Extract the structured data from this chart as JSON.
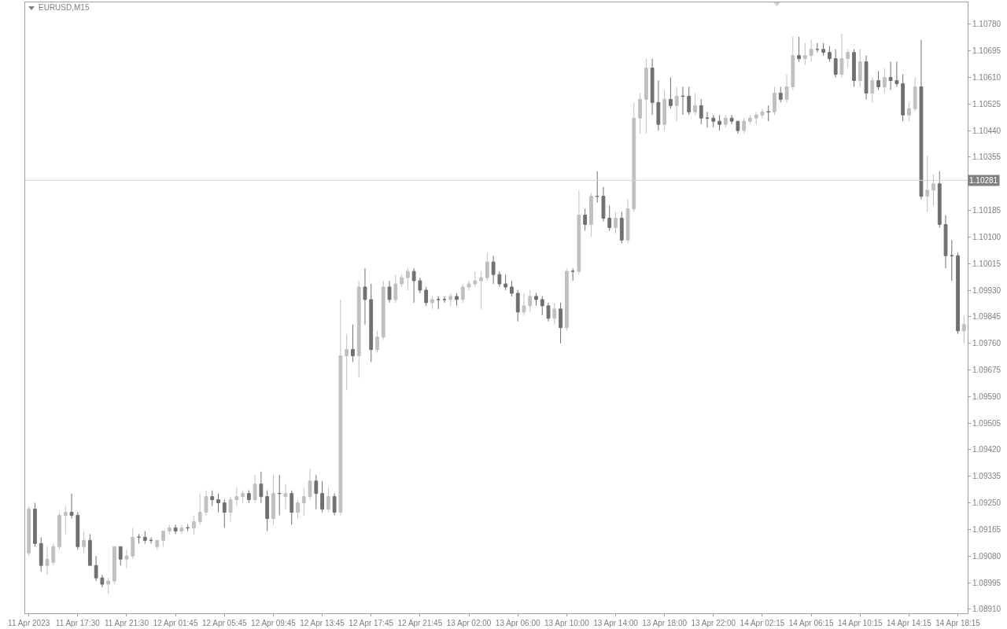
{
  "chart_data": {
    "type": "candlestick",
    "title": "EURUSD,M15",
    "categories": [
      "11 Apr 2023",
      null,
      null,
      null,
      null,
      null,
      null,
      null,
      "11 Apr 17:30",
      null,
      null,
      null,
      null,
      null,
      null,
      null,
      "11 Apr 21:30",
      null,
      null,
      null,
      null,
      null,
      null,
      null,
      "12 Apr 01:45",
      null,
      null,
      null,
      null,
      null,
      null,
      null,
      "12 Apr 05:45",
      null,
      null,
      null,
      null,
      null,
      null,
      null,
      "12 Apr 09:45",
      null,
      null,
      null,
      null,
      null,
      null,
      null,
      "12 Apr 13:45",
      null,
      null,
      null,
      null,
      null,
      null,
      null,
      "12 Apr 17:45",
      null,
      null,
      null,
      null,
      null,
      null,
      null,
      "12 Apr 21:45",
      null,
      null,
      null,
      null,
      null,
      null,
      null,
      "13 Apr 02:00",
      null,
      null,
      null,
      null,
      null,
      null,
      null,
      "13 Apr 06:00",
      null,
      null,
      null,
      null,
      null,
      null,
      null,
      "13 Apr 10:00",
      null,
      null,
      null,
      null,
      null,
      null,
      null,
      "13 Apr 14:00",
      null,
      null,
      null,
      null,
      null,
      null,
      null,
      "13 Apr 18:00",
      null,
      null,
      null,
      null,
      null,
      null,
      null,
      "13 Apr 22:00",
      null,
      null,
      null,
      null,
      null,
      null,
      null,
      "14 Apr 02:15",
      null,
      null,
      null,
      null,
      null,
      null,
      null,
      "14 Apr 06:15",
      null,
      null,
      null,
      null,
      null,
      null,
      null,
      "14 Apr 10:15",
      null,
      null,
      null,
      null,
      null,
      null,
      null,
      "14 Apr 14:15",
      null,
      null,
      null,
      null,
      null,
      null,
      null,
      "14 Apr 18:15",
      null
    ],
    "ohlc": [
      [
        1.0909,
        1.0924,
        1.0908,
        1.0923
      ],
      [
        1.0923,
        1.0925,
        1.0911,
        1.0912
      ],
      [
        1.0912,
        1.0914,
        1.0903,
        1.0905
      ],
      [
        1.0905,
        1.0911,
        1.0902,
        1.0907
      ],
      [
        1.0906,
        1.0912,
        1.0905,
        1.0911
      ],
      [
        1.0911,
        1.0922,
        1.091,
        1.0921
      ],
      [
        1.0921,
        1.0924,
        1.0915,
        1.0922
      ],
      [
        1.0922,
        1.0928,
        1.092,
        1.0921
      ],
      [
        1.0921,
        1.0922,
        1.091,
        1.0911
      ],
      [
        1.0911,
        1.0916,
        1.0909,
        1.0913
      ],
      [
        1.0913,
        1.0915,
        1.0905,
        1.0905
      ],
      [
        1.0905,
        1.0908,
        1.09,
        1.0901
      ],
      [
        1.0901,
        1.0902,
        1.0898,
        1.0899
      ],
      [
        1.0899,
        1.0901,
        1.0896,
        1.09
      ],
      [
        1.09,
        1.0911,
        1.0899,
        1.0911
      ],
      [
        1.0911,
        1.0911,
        1.0905,
        1.0907
      ],
      [
        1.0907,
        1.091,
        1.0904,
        1.0908
      ],
      [
        1.0908,
        1.0917,
        1.0907,
        1.0914
      ],
      [
        1.0914,
        1.0915,
        1.0912,
        1.0914
      ],
      [
        1.0914,
        1.0916,
        1.0912,
        1.0913
      ],
      [
        1.0913,
        1.0914,
        1.0912,
        1.0913
      ],
      [
        1.0911,
        1.0913,
        1.091,
        1.0913
      ],
      [
        1.0913,
        1.0916,
        1.0911,
        1.0916
      ],
      [
        1.0916,
        1.0918,
        1.0915,
        1.0917
      ],
      [
        1.0917,
        1.0918,
        1.0915,
        1.0916
      ],
      [
        1.0916,
        1.0918,
        1.0915,
        1.0917
      ],
      [
        1.0917,
        1.0918,
        1.0916,
        1.0917
      ],
      [
        1.0917,
        1.0921,
        1.0915,
        1.0919
      ],
      [
        1.0919,
        1.0928,
        1.0918,
        1.0922
      ],
      [
        1.0922,
        1.0929,
        1.0921,
        1.0927
      ],
      [
        1.0927,
        1.0929,
        1.0924,
        1.0926
      ],
      [
        1.0926,
        1.0928,
        1.0922,
        1.0925
      ],
      [
        1.0925,
        1.0926,
        1.0917,
        1.0922
      ],
      [
        1.0922,
        1.0927,
        1.0919,
        1.0926
      ],
      [
        1.0926,
        1.093,
        1.0924,
        1.0927
      ],
      [
        1.0927,
        1.0929,
        1.0925,
        1.0928
      ],
      [
        1.0928,
        1.0929,
        1.0925,
        1.0926
      ],
      [
        1.0926,
        1.0934,
        1.0925,
        1.0931
      ],
      [
        1.0931,
        1.0935,
        1.0925,
        1.0927
      ],
      [
        1.0927,
        1.0929,
        1.0916,
        1.092
      ],
      [
        1.092,
        1.0934,
        1.0918,
        1.0928
      ],
      [
        1.0928,
        1.0934,
        1.0921,
        1.0928
      ],
      [
        1.0927,
        1.0931,
        1.0923,
        1.0928
      ],
      [
        1.0928,
        1.0929,
        1.0918,
        1.0922
      ],
      [
        1.0922,
        1.0926,
        1.092,
        1.0925
      ],
      [
        1.0925,
        1.093,
        1.0921,
        1.0927
      ],
      [
        1.0927,
        1.0936,
        1.0926,
        1.0932
      ],
      [
        1.0932,
        1.0934,
        1.0923,
        1.0928
      ],
      [
        1.0928,
        1.0932,
        1.0922,
        1.0923
      ],
      [
        1.0923,
        1.093,
        1.0922,
        1.0927
      ],
      [
        1.0927,
        1.0928,
        1.0921,
        1.0922
      ],
      [
        1.0922,
        1.099,
        1.0921,
        1.0972
      ],
      [
        1.0972,
        1.0979,
        1.0961,
        1.0974
      ],
      [
        1.0974,
        1.0982,
        1.097,
        1.0972
      ],
      [
        1.0972,
        1.0996,
        1.0965,
        1.0994
      ],
      [
        1.0994,
        1.1,
        1.0982,
        1.099
      ],
      [
        1.099,
        1.0995,
        1.097,
        1.0974
      ],
      [
        1.0974,
        1.098,
        1.0973,
        1.0978
      ],
      [
        1.0978,
        1.0996,
        1.0977,
        1.0994
      ],
      [
        1.0994,
        1.0996,
        1.0989,
        1.099
      ],
      [
        1.099,
        1.0998,
        1.0989,
        1.0995
      ],
      [
        1.0995,
        1.0998,
        1.0994,
        1.0997
      ],
      [
        1.0997,
        1.1,
        1.0993,
        1.0999
      ],
      [
        1.0999,
        1.1,
        1.0989,
        1.0996
      ],
      [
        1.0996,
        1.0997,
        1.0992,
        1.0993
      ],
      [
        1.0993,
        1.0994,
        1.0988,
        1.0989
      ],
      [
        1.0989,
        1.0991,
        1.0987,
        1.099
      ],
      [
        1.099,
        1.0991,
        1.0987,
        1.099
      ],
      [
        1.099,
        1.0991,
        1.0989,
        1.099
      ],
      [
        1.099,
        1.0992,
        1.0988,
        1.0991
      ],
      [
        1.0991,
        1.0992,
        1.0988,
        1.099
      ],
      [
        1.099,
        1.0995,
        1.0989,
        1.0994
      ],
      [
        1.0994,
        1.0996,
        1.0993,
        1.0995
      ],
      [
        1.0995,
        1.0999,
        1.0994,
        1.0996
      ],
      [
        1.0996,
        1.0999,
        1.0987,
        1.0997
      ],
      [
        1.0997,
        1.1005,
        1.0996,
        1.1002
      ],
      [
        1.1002,
        1.1004,
        1.0995,
        1.0998
      ],
      [
        1.0998,
        1.0999,
        1.0994,
        1.0995
      ],
      [
        1.0995,
        1.0998,
        1.0993,
        1.0994
      ],
      [
        1.0994,
        1.0996,
        1.0991,
        1.0992
      ],
      [
        1.0992,
        1.0993,
        1.0983,
        1.0986
      ],
      [
        1.0986,
        1.0992,
        1.0985,
        1.0988
      ],
      [
        1.0988,
        1.0993,
        1.0986,
        1.0991
      ],
      [
        1.0991,
        1.0992,
        1.0988,
        1.099
      ],
      [
        1.099,
        1.0991,
        1.0985,
        1.0988
      ],
      [
        1.0988,
        1.0989,
        1.0983,
        1.0984
      ],
      [
        1.0984,
        1.0989,
        1.0982,
        1.0987
      ],
      [
        1.0987,
        1.0989,
        1.0976,
        1.0981
      ],
      [
        1.0981,
        1.1,
        1.098,
        1.0999
      ],
      [
        1.0999,
        1.1,
        1.0996,
        1.0999
      ],
      [
        1.0999,
        1.1025,
        1.0998,
        1.1017
      ],
      [
        1.1017,
        1.1019,
        1.1012,
        1.1014
      ],
      [
        1.1014,
        1.1024,
        1.101,
        1.1023
      ],
      [
        1.1023,
        1.1031,
        1.1021,
        1.1023
      ],
      [
        1.1023,
        1.1026,
        1.1015,
        1.1016
      ],
      [
        1.1016,
        1.102,
        1.1012,
        1.1013
      ],
      [
        1.1013,
        1.1018,
        1.1011,
        1.1016
      ],
      [
        1.1016,
        1.1018,
        1.1008,
        1.1009
      ],
      [
        1.1009,
        1.1022,
        1.1008,
        1.1019
      ],
      [
        1.1019,
        1.1053,
        1.1018,
        1.1048
      ],
      [
        1.1048,
        1.1056,
        1.1043,
        1.1054
      ],
      [
        1.1054,
        1.1067,
        1.1043,
        1.1064
      ],
      [
        1.1064,
        1.1067,
        1.1049,
        1.1053
      ],
      [
        1.1053,
        1.106,
        1.1044,
        1.1046
      ],
      [
        1.1046,
        1.1057,
        1.1044,
        1.1054
      ],
      [
        1.1054,
        1.1061,
        1.1051,
        1.1052
      ],
      [
        1.1052,
        1.1058,
        1.1047,
        1.1055
      ],
      [
        1.1055,
        1.1058,
        1.1049,
        1.1055
      ],
      [
        1.1055,
        1.1058,
        1.1049,
        1.105
      ],
      [
        1.105,
        1.1056,
        1.1049,
        1.1052
      ],
      [
        1.1052,
        1.1054,
        1.1046,
        1.1048
      ],
      [
        1.1048,
        1.105,
        1.1045,
        1.1048
      ],
      [
        1.1048,
        1.1049,
        1.1045,
        1.1047
      ],
      [
        1.1047,
        1.1049,
        1.1044,
        1.1046
      ],
      [
        1.1046,
        1.1049,
        1.1045,
        1.1048
      ],
      [
        1.1048,
        1.1049,
        1.1046,
        1.1047
      ],
      [
        1.1047,
        1.1047,
        1.1043,
        1.1044
      ],
      [
        1.1044,
        1.1048,
        1.1043,
        1.1047
      ],
      [
        1.1047,
        1.1049,
        1.1046,
        1.1048
      ],
      [
        1.1048,
        1.105,
        1.1046,
        1.1049
      ],
      [
        1.1049,
        1.1051,
        1.1048,
        1.105
      ],
      [
        1.105,
        1.1052,
        1.1047,
        1.105
      ],
      [
        1.105,
        1.1058,
        1.1049,
        1.1056
      ],
      [
        1.1056,
        1.1058,
        1.1053,
        1.1054
      ],
      [
        1.1054,
        1.1062,
        1.1053,
        1.1058
      ],
      [
        1.1058,
        1.1074,
        1.1057,
        1.1068
      ],
      [
        1.1068,
        1.1074,
        1.1066,
        1.1067
      ],
      [
        1.1067,
        1.1072,
        1.1065,
        1.1068
      ],
      [
        1.1068,
        1.1073,
        1.1066,
        1.107
      ],
      [
        1.107,
        1.1072,
        1.1069,
        1.107
      ],
      [
        1.107,
        1.1072,
        1.1068,
        1.1069
      ],
      [
        1.1069,
        1.1071,
        1.1066,
        1.1067
      ],
      [
        1.1067,
        1.107,
        1.1061,
        1.1062
      ],
      [
        1.1062,
        1.1075,
        1.1061,
        1.1067
      ],
      [
        1.1067,
        1.107,
        1.1064,
        1.1069
      ],
      [
        1.1069,
        1.107,
        1.1058,
        1.106
      ],
      [
        1.106,
        1.107,
        1.1058,
        1.1066
      ],
      [
        1.1066,
        1.1068,
        1.1054,
        1.1056
      ],
      [
        1.1056,
        1.1061,
        1.1053,
        1.106
      ],
      [
        1.106,
        1.1063,
        1.1057,
        1.1058
      ],
      [
        1.1058,
        1.1064,
        1.1056,
        1.1061
      ],
      [
        1.1061,
        1.1066,
        1.1057,
        1.106
      ],
      [
        1.106,
        1.1066,
        1.1058,
        1.1059
      ],
      [
        1.1059,
        1.1062,
        1.1047,
        1.1049
      ],
      [
        1.1049,
        1.1053,
        1.1047,
        1.1051
      ],
      [
        1.1051,
        1.1061,
        1.105,
        1.1058
      ],
      [
        1.1058,
        1.1073,
        1.1022,
        1.1023
      ],
      [
        1.1023,
        1.1036,
        1.1018,
        1.1025
      ],
      [
        1.1025,
        1.103,
        1.102,
        1.1027
      ],
      [
        1.1027,
        1.1031,
        1.1013,
        1.1014
      ],
      [
        1.1014,
        1.1017,
        1.1,
        1.1004
      ],
      [
        1.1004,
        1.1009,
        1.0996,
        1.1004
      ],
      [
        1.1004,
        1.1005,
        1.0979,
        1.098
      ],
      [
        1.098,
        1.0985,
        1.0976,
        1.0982
      ]
    ],
    "colors": [
      "#c0c0c0",
      "#707070",
      "#707070",
      "#c0c0c0",
      "#c0c0c0",
      "#c0c0c0",
      "#c0c0c0",
      "#707070",
      "#707070",
      "#c0c0c0",
      "#707070",
      "#707070",
      "#707070",
      "#c0c0c0",
      "#c0c0c0",
      "#707070",
      "#c0c0c0",
      "#c0c0c0",
      "#707070",
      "#707070",
      "#707070",
      "#c0c0c0",
      "#c0c0c0",
      "#c0c0c0",
      "#707070",
      "#c0c0c0",
      "#707070",
      "#c0c0c0",
      "#c0c0c0",
      "#c0c0c0",
      "#707070",
      "#707070",
      "#707070",
      "#c0c0c0",
      "#c0c0c0",
      "#c0c0c0",
      "#707070",
      "#c0c0c0",
      "#707070",
      "#707070",
      "#c0c0c0",
      "#707070",
      "#c0c0c0",
      "#707070",
      "#c0c0c0",
      "#c0c0c0",
      "#c0c0c0",
      "#707070",
      "#707070",
      "#c0c0c0",
      "#707070",
      "#c0c0c0",
      "#c0c0c0",
      "#707070",
      "#c0c0c0",
      "#707070",
      "#707070",
      "#c0c0c0",
      "#c0c0c0",
      "#707070",
      "#c0c0c0",
      "#c0c0c0",
      "#c0c0c0",
      "#707070",
      "#707070",
      "#707070",
      "#c0c0c0",
      "#707070",
      "#707070",
      "#c0c0c0",
      "#707070",
      "#c0c0c0",
      "#c0c0c0",
      "#c0c0c0",
      "#c0c0c0",
      "#c0c0c0",
      "#707070",
      "#707070",
      "#707070",
      "#707070",
      "#707070",
      "#c0c0c0",
      "#c0c0c0",
      "#707070",
      "#707070",
      "#707070",
      "#c0c0c0",
      "#707070",
      "#c0c0c0",
      "#707070",
      "#c0c0c0",
      "#707070",
      "#c0c0c0",
      "#707070",
      "#707070",
      "#707070",
      "#c0c0c0",
      "#707070",
      "#c0c0c0",
      "#c0c0c0",
      "#c0c0c0",
      "#c0c0c0",
      "#707070",
      "#707070",
      "#c0c0c0",
      "#707070",
      "#c0c0c0",
      "#707070",
      "#707070",
      "#c0c0c0",
      "#707070",
      "#707070",
      "#707070",
      "#707070",
      "#c0c0c0",
      "#707070",
      "#707070",
      "#c0c0c0",
      "#c0c0c0",
      "#c0c0c0",
      "#c0c0c0",
      "#707070",
      "#c0c0c0",
      "#707070",
      "#c0c0c0",
      "#c0c0c0",
      "#707070",
      "#c0c0c0",
      "#c0c0c0",
      "#707070",
      "#707070",
      "#707070",
      "#707070",
      "#c0c0c0",
      "#c0c0c0",
      "#707070",
      "#c0c0c0",
      "#707070",
      "#c0c0c0",
      "#707070",
      "#c0c0c0",
      "#707070",
      "#707070",
      "#707070",
      "#c0c0c0",
      "#c0c0c0",
      "#707070",
      "#c0c0c0",
      "#c0c0c0",
      "#707070",
      "#707070",
      "#707070",
      "#707070",
      "#c0c0c0"
    ],
    "ylim": [
      1.08897,
      1.1085
    ],
    "yticks": [
      {
        "value": 1.0891,
        "label": "1.08910"
      },
      {
        "value": 1.08995,
        "label": "1.08995"
      },
      {
        "value": 1.0908,
        "label": "1.09080"
      },
      {
        "value": 1.09165,
        "label": "1.09165"
      },
      {
        "value": 1.0925,
        "label": "1.09250"
      },
      {
        "value": 1.09335,
        "label": "1.09335"
      },
      {
        "value": 1.0942,
        "label": "1.09420"
      },
      {
        "value": 1.09505,
        "label": "1.09505"
      },
      {
        "value": 1.0959,
        "label": "1.09590"
      },
      {
        "value": 1.09675,
        "label": "1.09675"
      },
      {
        "value": 1.0976,
        "label": "1.09760"
      },
      {
        "value": 1.09845,
        "label": "1.09845"
      },
      {
        "value": 1.0993,
        "label": "1.09930"
      },
      {
        "value": 1.10015,
        "label": "1.10015"
      },
      {
        "value": 1.101,
        "label": "1.10100"
      },
      {
        "value": 1.10185,
        "label": "1.10185"
      },
      {
        "value": 1.10355,
        "label": "1.10355"
      },
      {
        "value": 1.1044,
        "label": "1.10440"
      },
      {
        "value": 1.10525,
        "label": "1.10525"
      },
      {
        "value": 1.1061,
        "label": "1.10610"
      },
      {
        "value": 1.10695,
        "label": "1.10695"
      },
      {
        "value": 1.1078,
        "label": "1.10780"
      }
    ],
    "ref_lines": [
      {
        "axis": "y",
        "value": 1.10281,
        "label": "1.10281",
        "color": "#d3d3d3"
      }
    ],
    "grid": false
  }
}
